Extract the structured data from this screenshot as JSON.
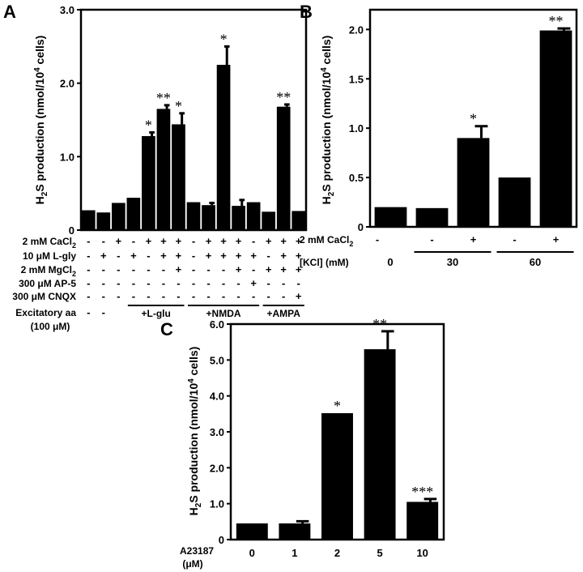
{
  "chart_data": [
    {
      "panel": "A",
      "type": "bar",
      "ylabel_main": "H",
      "ylabel_sub": "2",
      "ylabel_rest": "S production (nmol/10",
      "ylabel_sup": "4",
      "ylabel_end": " cells)",
      "ylim": [
        0,
        3.0
      ],
      "yticks": [
        "0",
        "1.0",
        "2.0",
        "3.0"
      ],
      "ytick_values": [
        0,
        1.0,
        2.0,
        3.0
      ],
      "values": [
        0.27,
        0.24,
        0.37,
        0.44,
        1.28,
        1.65,
        1.44,
        0.38,
        0.34,
        2.25,
        0.33,
        0.38,
        0.25,
        1.68,
        0.26
      ],
      "errors": [
        0,
        0,
        0,
        0,
        0.05,
        0.05,
        0.15,
        0,
        0.03,
        0.25,
        0.08,
        0,
        0,
        0.03,
        0
      ],
      "annotations": [
        "",
        "",
        "",
        "",
        "*",
        "**",
        "*",
        "",
        "",
        "*",
        "",
        "",
        "",
        "**",
        ""
      ],
      "conditions": [
        {
          "label": "2 mM CaCl",
          "label_sub": "2",
          "symbols": [
            "-",
            "-",
            "+",
            "-",
            "+",
            "+",
            "+",
            "-",
            "+",
            "+",
            "+",
            "-",
            "+",
            "+",
            "+"
          ]
        },
        {
          "label": "10 μM L-gly",
          "label_sub": "",
          "symbols": [
            "-",
            "+",
            "-",
            "+",
            "-",
            "+",
            "+",
            "-",
            "+",
            "+",
            "+",
            "+",
            "-",
            "+",
            "+"
          ]
        },
        {
          "label": "2 mM MgCl",
          "label_sub": "2",
          "symbols": [
            "-",
            "-",
            "-",
            "-",
            "-",
            "-",
            "+",
            "-",
            "-",
            "-",
            "+",
            "-",
            "+",
            "+",
            "+"
          ]
        },
        {
          "label": "300 μM AP-5",
          "label_sub": "",
          "symbols": [
            "-",
            "-",
            "-",
            "-",
            "-",
            "-",
            "-",
            "-",
            "-",
            "-",
            "-",
            "+",
            "-",
            "-",
            "-"
          ]
        },
        {
          "label": "300 μM CNQX",
          "label_sub": "",
          "symbols": [
            "-",
            "-",
            "-",
            "-",
            "-",
            "-",
            "-",
            "-",
            "-",
            "-",
            "-",
            "-",
            "-",
            "-",
            "+"
          ]
        }
      ],
      "excitatory_label": "Excitatory aa",
      "excitatory_label2": "(100 μM)",
      "excitatory_items": [
        "-",
        "-"
      ],
      "groups": [
        "+L-glu",
        "+NMDA",
        "+AMPA"
      ]
    },
    {
      "panel": "B",
      "type": "bar",
      "ylabel_main": "H",
      "ylabel_sub": "2",
      "ylabel_rest": "S production (nmol/10",
      "ylabel_sup": "4",
      "ylabel_end": " cells)",
      "ylim": [
        0,
        2.2
      ],
      "yticks": [
        "0",
        "0.5",
        "1.0",
        "1.5",
        "2.0"
      ],
      "ytick_values": [
        0,
        0.5,
        1.0,
        1.5,
        2.0
      ],
      "values": [
        0.2,
        0.19,
        0.9,
        0.5,
        1.99
      ],
      "errors": [
        0,
        0,
        0.12,
        0,
        0.02
      ],
      "annotations": [
        "",
        "",
        "*",
        "",
        "**"
      ],
      "cacl_label": "2 mM CaCl",
      "cacl_sub": "2",
      "cacl_symbols": [
        "-",
        "-",
        "+",
        "-",
        "+"
      ],
      "kcl_label": "[KCl] (mM)",
      "kcl_groups": [
        "0",
        "30",
        "60"
      ]
    },
    {
      "panel": "C",
      "type": "bar",
      "ylabel_main": "H",
      "ylabel_sub": "2",
      "ylabel_rest": "S production (nmol/10",
      "ylabel_sup": "4",
      "ylabel_end": " cells)",
      "ylim": [
        0,
        6.0
      ],
      "yticks": [
        "0",
        "1.0",
        "2.0",
        "3.0",
        "4.0",
        "5.0",
        "6.0"
      ],
      "ytick_values": [
        0,
        1.0,
        2.0,
        3.0,
        4.0,
        5.0,
        6.0
      ],
      "categories": [
        "0",
        "1",
        "2",
        "5",
        "10"
      ],
      "values": [
        0.45,
        0.45,
        3.52,
        5.3,
        1.05
      ],
      "errors": [
        0,
        0.06,
        0,
        0.5,
        0.08
      ],
      "annotations": [
        "",
        "",
        "*",
        "**",
        "***"
      ],
      "xlabel_line1": "A23187",
      "xlabel_line2": "(μM)"
    }
  ]
}
